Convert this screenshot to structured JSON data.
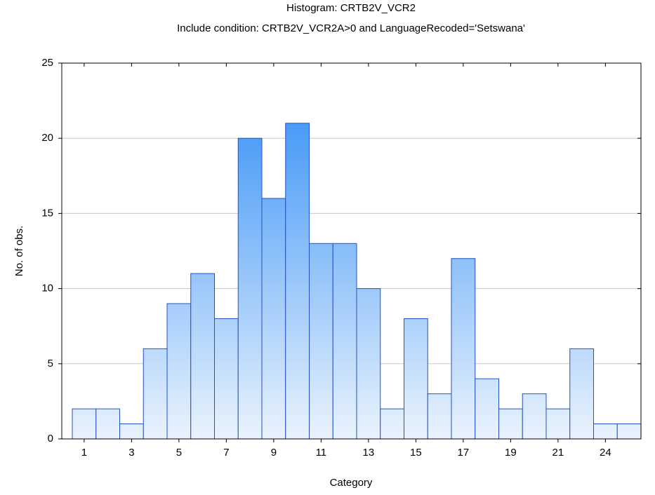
{
  "chart_data": {
    "type": "bar",
    "title": "Histogram: CRTB2V_VCR2",
    "subtitle": "Include condition: CRTB2V_VCR2A>0 and LanguageRecoded='Setswana'",
    "x_label": "Category",
    "y_label": "No. of obs.",
    "categories": [
      "1",
      null,
      "3",
      null,
      "5",
      null,
      "7",
      null,
      "9",
      null,
      "11",
      null,
      "13",
      null,
      "15",
      null,
      "17",
      null,
      "19",
      null,
      "21",
      null,
      "24",
      null
    ],
    "values": [
      2,
      2,
      1,
      6,
      9,
      11,
      8,
      20,
      16,
      21,
      13,
      13,
      10,
      2,
      8,
      3,
      12,
      4,
      2,
      3,
      2,
      6,
      1,
      1
    ],
    "color": "#2a8af6",
    "ylim": [
      0,
      25
    ],
    "yticks": [
      0,
      5,
      10,
      15,
      20,
      25
    ],
    "grid": true
  }
}
